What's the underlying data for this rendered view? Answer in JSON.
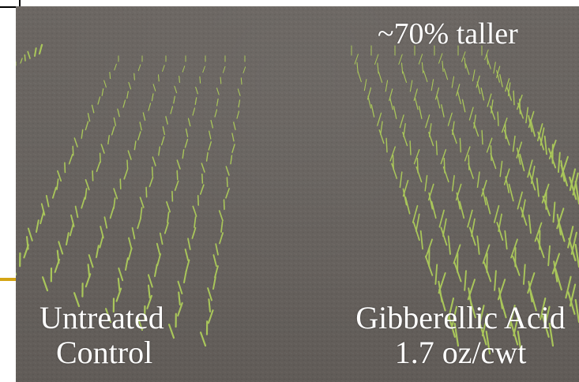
{
  "photo": {
    "description_icon": "field-photo",
    "soil_color": "#67625e",
    "seedling_color": "#a9c65a"
  },
  "labels": {
    "top_right": "~70% taller",
    "left_line1": "Untreated",
    "left_line2": "Control",
    "right_line1": "Gibberellic Acid",
    "right_line2": "1.7 oz/cwt"
  }
}
